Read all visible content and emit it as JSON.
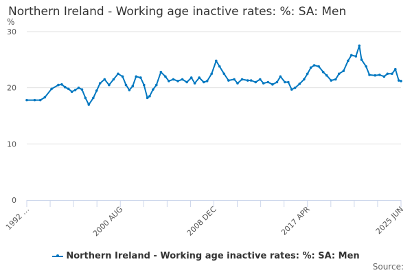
{
  "chart_data": {
    "type": "line",
    "title": "Northern Ireland - Working age inactive rates: %: SA: Men",
    "ylabel": "%",
    "xlabel": "",
    "ylim": [
      0,
      30
    ],
    "yticks": [
      "0",
      "10",
      "20",
      "30"
    ],
    "xlim": [
      1992.3,
      2025.5
    ],
    "xtick_labels": [
      "1992 …",
      "2000 AUG",
      "2008 DEC",
      "2017 APR",
      "2025 JUN"
    ],
    "grid": true,
    "legend_position": "bottom",
    "source_label": "Source:",
    "color": "#0077c0",
    "series": [
      {
        "name": "Northern Ireland - Working age inactive rates: %: SA: Men",
        "x": [
          1992.3,
          1993.0,
          1993.5,
          1993.9,
          1994.5,
          1995.1,
          1995.4,
          1995.7,
          1996.0,
          1996.3,
          1996.6,
          1996.9,
          1997.2,
          1997.5,
          1997.8,
          1998.2,
          1998.5,
          1998.8,
          1999.2,
          1999.6,
          2000.0,
          2000.4,
          2000.8,
          2001.1,
          2001.4,
          2001.7,
          2002.0,
          2002.4,
          2002.7,
          2003.0,
          2003.2,
          2003.5,
          2003.8,
          2004.2,
          2004.6,
          2004.9,
          2005.3,
          2005.7,
          2006.1,
          2006.5,
          2006.9,
          2007.2,
          2007.6,
          2008.0,
          2008.3,
          2008.7,
          2009.1,
          2009.4,
          2009.8,
          2010.2,
          2010.7,
          2011.0,
          2011.4,
          2011.9,
          2012.2,
          2012.6,
          2013.0,
          2013.3,
          2013.7,
          2014.1,
          2014.5,
          2014.8,
          2015.2,
          2015.5,
          2015.8,
          2016.1,
          2016.5,
          2016.9,
          2017.2,
          2017.5,
          2017.8,
          2018.2,
          2018.6,
          2018.9,
          2019.3,
          2019.7,
          2020.0,
          2020.4,
          2020.8,
          2021.1,
          2021.5,
          2021.8,
          2022.0,
          2022.4,
          2022.7,
          2023.2,
          2023.6,
          2024.0,
          2024.3,
          2024.7,
          2025.0,
          2025.3,
          2025.5
        ],
        "y": [
          17.8,
          17.8,
          17.8,
          18.3,
          19.8,
          20.5,
          20.6,
          20.1,
          19.8,
          19.3,
          19.6,
          20.0,
          19.7,
          18.2,
          17.0,
          18.2,
          19.5,
          20.8,
          21.5,
          20.5,
          21.5,
          22.5,
          22.0,
          20.5,
          19.6,
          20.3,
          22.0,
          21.8,
          20.5,
          18.2,
          18.5,
          19.7,
          20.5,
          22.8,
          22.0,
          21.2,
          21.5,
          21.2,
          21.5,
          21.0,
          21.8,
          20.8,
          21.8,
          21.0,
          21.2,
          22.5,
          24.8,
          23.8,
          22.5,
          21.3,
          21.5,
          20.8,
          21.5,
          21.3,
          21.3,
          21.0,
          21.5,
          20.8,
          21.0,
          20.6,
          21.0,
          22.0,
          21.0,
          21.0,
          19.7,
          20.0,
          20.7,
          21.5,
          22.5,
          23.6,
          24.0,
          23.8,
          22.8,
          22.2,
          21.3,
          21.5,
          22.5,
          23.0,
          24.8,
          25.8,
          25.6,
          27.5,
          25.0,
          23.8,
          22.3,
          22.2,
          22.3,
          22.0,
          22.5,
          22.5,
          23.3,
          21.3,
          21.2
        ]
      }
    ]
  }
}
